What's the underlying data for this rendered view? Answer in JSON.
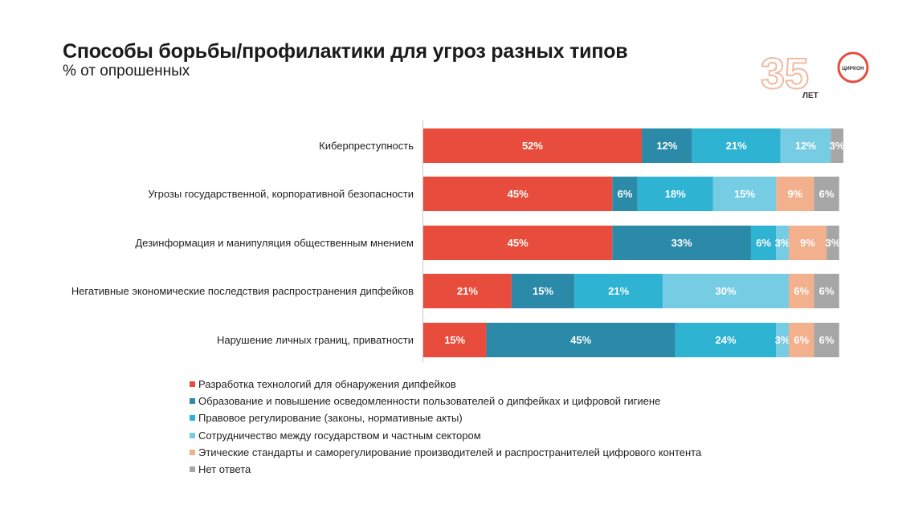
{
  "header": {
    "title": "Способы борьбы/профилактики для угроз разных типов",
    "subtitle": "% от опрошенных"
  },
  "logo": {
    "number": "35",
    "years": "ЛЕТ",
    "brand": "ЦИРКОН"
  },
  "chart_data": {
    "type": "bar",
    "orientation": "horizontal",
    "stacked": true,
    "unit": "%",
    "categories": [
      "Киберпреступность",
      "Угрозы государственной, корпоративной безопасности",
      "Дезинформация и манипуляция общественным мнением",
      "Негативные экономические последствия распространения дипфейков",
      "Нарушение личных границ, приватности"
    ],
    "series": [
      {
        "name": "Разработка технологий для обнаружения дипфейков",
        "color": "#e84c3d",
        "values": [
          52,
          45,
          45,
          21,
          15
        ]
      },
      {
        "name": "Образование и повышение осведомленности пользователей о дипфейках и цифровой гигиене",
        "color": "#2b8aa8",
        "values": [
          12,
          6,
          33,
          15,
          45
        ]
      },
      {
        "name": "Правовое регулирование (законы, нормативные акты)",
        "color": "#2fb3d2",
        "values": [
          21,
          18,
          6,
          21,
          24
        ]
      },
      {
        "name": "Сотрудничество между государством и частным сектором",
        "color": "#76cde3",
        "values": [
          12,
          15,
          3,
          30,
          3
        ]
      },
      {
        "name": "Этические стандарты и саморегулирование производителей и распространителей цифрового контента",
        "color": "#f2b08c",
        "values": [
          0,
          9,
          9,
          6,
          6
        ]
      },
      {
        "name": "Нет ответа",
        "color": "#a6a6a6",
        "values": [
          3,
          6,
          3,
          6,
          6
        ]
      }
    ],
    "legend_position": "bottom",
    "grid": false
  }
}
